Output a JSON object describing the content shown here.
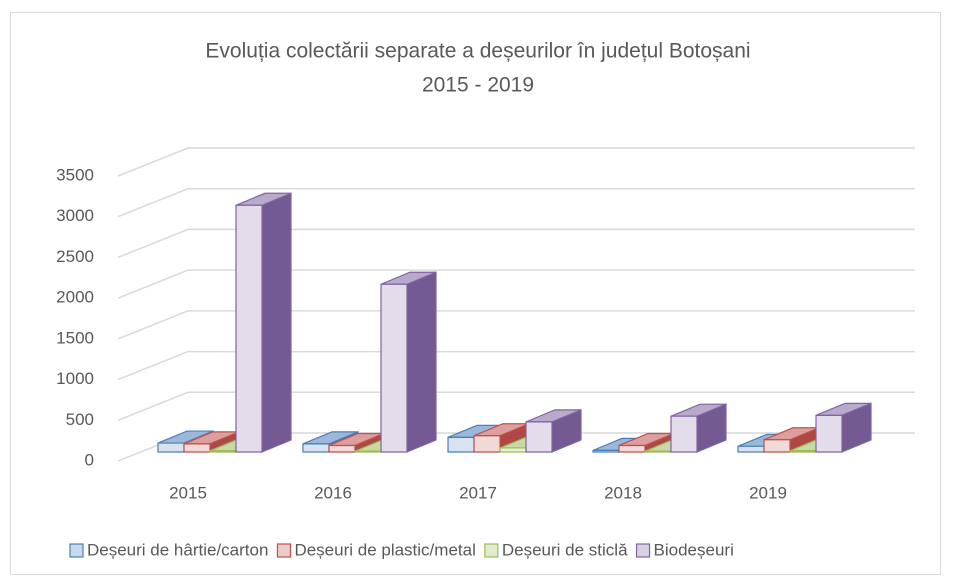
{
  "chart_data": {
    "type": "bar3d",
    "title": "Evoluția colectării separate a deșeurilor în județul Botoșani",
    "subtitle": "2015 - 2019",
    "categories": [
      "2015",
      "2016",
      "2017",
      "2018",
      "2019"
    ],
    "series": [
      {
        "name": "Deșeuri de hârtie/carton",
        "color": "#4a7ebb",
        "values": [
          110,
          100,
          180,
          20,
          70
        ]
      },
      {
        "name": "Deșeuri de plastic/metal",
        "color": "#c0504d",
        "values": [
          100,
          80,
          200,
          80,
          150
        ]
      },
      {
        "name": "Deșeuri de sticlă",
        "color": "#9bbb59",
        "values": [
          15,
          10,
          50,
          10,
          15
        ]
      },
      {
        "name": "Biodeșeuri",
        "color": "#8064a2",
        "values": [
          3030,
          2060,
          370,
          440,
          450
        ]
      }
    ],
    "ylim": [
      0,
      3500
    ],
    "yticks": [
      0,
      500,
      1000,
      1500,
      2000,
      2500,
      3000,
      3500
    ],
    "grid": true,
    "legend": "bottom"
  }
}
